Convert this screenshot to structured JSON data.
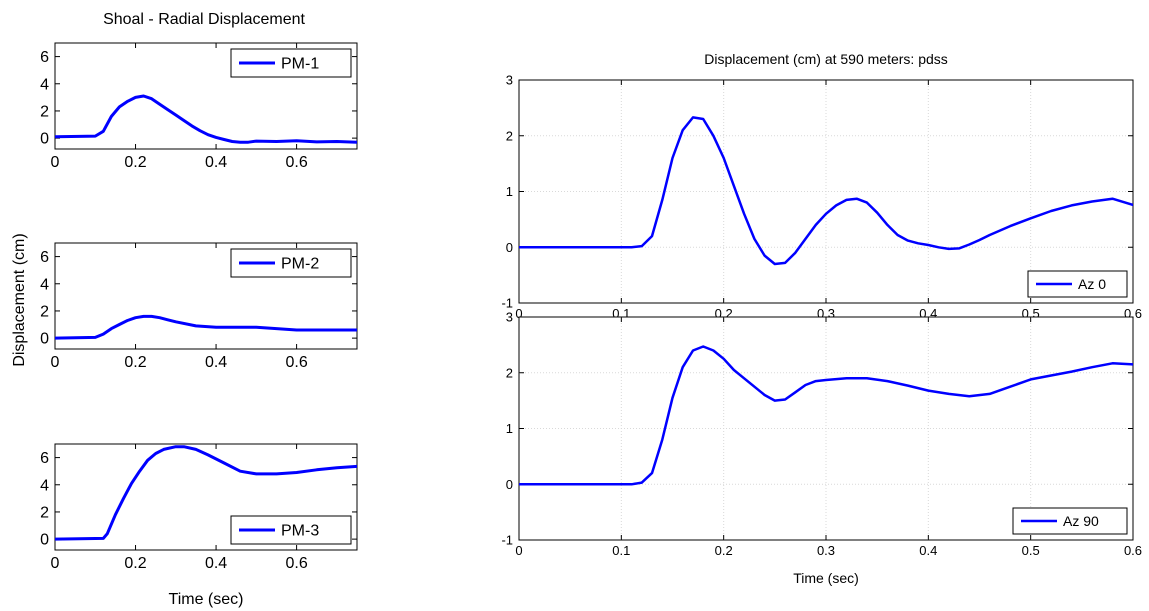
{
  "figure": {
    "left_title": "Shoal - Radial Displacement",
    "left_ylabel": "Displacement (cm)",
    "left_xlabel": "Time (sec)",
    "right_title": "Displacement (cm) at 590 meters: pdss",
    "right_xlabel": "Time (sec)",
    "line_color": "#0000ff"
  },
  "chart_data": [
    {
      "type": "line",
      "id": "pm1",
      "xlim": [
        0,
        0.75
      ],
      "ylim": [
        -0.8,
        7
      ],
      "xticks": [
        0,
        0.2,
        0.4,
        0.6
      ],
      "yticks": [
        0,
        2,
        4,
        6
      ],
      "grid": false,
      "legend": "top-right",
      "series": [
        {
          "name": "PM-1",
          "x": [
            0,
            0.1,
            0.12,
            0.14,
            0.16,
            0.18,
            0.2,
            0.22,
            0.24,
            0.26,
            0.28,
            0.3,
            0.32,
            0.34,
            0.36,
            0.38,
            0.4,
            0.42,
            0.44,
            0.46,
            0.48,
            0.5,
            0.55,
            0.6,
            0.65,
            0.7,
            0.75
          ],
          "y": [
            0.1,
            0.15,
            0.5,
            1.6,
            2.3,
            2.7,
            3.0,
            3.1,
            2.9,
            2.5,
            2.1,
            1.7,
            1.3,
            0.9,
            0.55,
            0.25,
            0.05,
            -0.1,
            -0.25,
            -0.3,
            -0.3,
            -0.22,
            -0.25,
            -0.2,
            -0.28,
            -0.25,
            -0.3
          ]
        }
      ]
    },
    {
      "type": "line",
      "id": "pm2",
      "xlim": [
        0,
        0.75
      ],
      "ylim": [
        -0.8,
        7
      ],
      "xticks": [
        0,
        0.2,
        0.4,
        0.6
      ],
      "yticks": [
        0,
        2,
        4,
        6
      ],
      "grid": false,
      "legend": "top-right",
      "series": [
        {
          "name": "PM-2",
          "x": [
            0,
            0.1,
            0.12,
            0.14,
            0.16,
            0.18,
            0.2,
            0.22,
            0.24,
            0.26,
            0.28,
            0.3,
            0.35,
            0.4,
            0.45,
            0.5,
            0.55,
            0.6,
            0.65,
            0.7,
            0.75
          ],
          "y": [
            0,
            0.05,
            0.3,
            0.7,
            1.0,
            1.3,
            1.5,
            1.6,
            1.6,
            1.5,
            1.35,
            1.2,
            0.9,
            0.8,
            0.8,
            0.8,
            0.7,
            0.6,
            0.6,
            0.6,
            0.6
          ]
        }
      ]
    },
    {
      "type": "line",
      "id": "pm3",
      "xlim": [
        0,
        0.75
      ],
      "ylim": [
        -0.8,
        7
      ],
      "xticks": [
        0,
        0.2,
        0.4,
        0.6
      ],
      "yticks": [
        0,
        2,
        4,
        6
      ],
      "grid": false,
      "legend": "bottom-right",
      "series": [
        {
          "name": "PM-3",
          "x": [
            0,
            0.12,
            0.13,
            0.15,
            0.17,
            0.19,
            0.21,
            0.23,
            0.25,
            0.27,
            0.3,
            0.32,
            0.35,
            0.38,
            0.42,
            0.46,
            0.5,
            0.55,
            0.6,
            0.65,
            0.7,
            0.75
          ],
          "y": [
            0,
            0.05,
            0.4,
            1.8,
            3.0,
            4.1,
            5.0,
            5.8,
            6.3,
            6.6,
            6.8,
            6.8,
            6.6,
            6.2,
            5.6,
            5.0,
            4.8,
            4.8,
            4.9,
            5.1,
            5.25,
            5.35
          ]
        }
      ]
    },
    {
      "type": "line",
      "id": "az0",
      "xlim": [
        0,
        0.6
      ],
      "ylim": [
        -1,
        3
      ],
      "xticks": [
        0,
        0.1,
        0.2,
        0.3,
        0.4,
        0.5,
        0.6
      ],
      "yticks": [
        -1,
        0,
        1,
        2,
        3
      ],
      "grid": true,
      "legend": "bottom-right",
      "series": [
        {
          "name": "Az 0",
          "x": [
            0,
            0.11,
            0.12,
            0.13,
            0.14,
            0.15,
            0.16,
            0.17,
            0.18,
            0.19,
            0.2,
            0.21,
            0.22,
            0.23,
            0.24,
            0.25,
            0.26,
            0.27,
            0.28,
            0.29,
            0.3,
            0.31,
            0.32,
            0.33,
            0.34,
            0.35,
            0.36,
            0.37,
            0.38,
            0.39,
            0.4,
            0.41,
            0.42,
            0.43,
            0.44,
            0.45,
            0.46,
            0.48,
            0.5,
            0.52,
            0.54,
            0.56,
            0.58,
            0.6
          ],
          "y": [
            0,
            0,
            0.02,
            0.2,
            0.85,
            1.6,
            2.1,
            2.33,
            2.3,
            2.0,
            1.6,
            1.1,
            0.6,
            0.15,
            -0.15,
            -0.3,
            -0.28,
            -0.1,
            0.15,
            0.4,
            0.6,
            0.75,
            0.85,
            0.87,
            0.8,
            0.62,
            0.4,
            0.22,
            0.12,
            0.07,
            0.04,
            0.0,
            -0.03,
            -0.02,
            0.05,
            0.13,
            0.22,
            0.38,
            0.52,
            0.65,
            0.75,
            0.82,
            0.87,
            0.76
          ]
        }
      ]
    },
    {
      "type": "line",
      "id": "az90",
      "xlim": [
        0,
        0.6
      ],
      "ylim": [
        -1,
        3
      ],
      "xticks": [
        0,
        0.1,
        0.2,
        0.3,
        0.4,
        0.5,
        0.6
      ],
      "yticks": [
        -1,
        0,
        1,
        2,
        3
      ],
      "grid": true,
      "legend": "bottom-right",
      "series": [
        {
          "name": "Az 90",
          "x": [
            0,
            0.11,
            0.12,
            0.13,
            0.14,
            0.15,
            0.16,
            0.17,
            0.18,
            0.19,
            0.2,
            0.21,
            0.22,
            0.23,
            0.24,
            0.25,
            0.26,
            0.27,
            0.28,
            0.29,
            0.3,
            0.32,
            0.34,
            0.36,
            0.38,
            0.4,
            0.42,
            0.44,
            0.46,
            0.48,
            0.5,
            0.52,
            0.54,
            0.56,
            0.58,
            0.6
          ],
          "y": [
            0,
            0,
            0.03,
            0.2,
            0.8,
            1.55,
            2.1,
            2.4,
            2.47,
            2.4,
            2.25,
            2.05,
            1.9,
            1.75,
            1.6,
            1.5,
            1.52,
            1.65,
            1.78,
            1.85,
            1.87,
            1.9,
            1.9,
            1.85,
            1.77,
            1.68,
            1.62,
            1.58,
            1.62,
            1.75,
            1.88,
            1.95,
            2.02,
            2.1,
            2.17,
            2.15
          ]
        }
      ]
    }
  ]
}
